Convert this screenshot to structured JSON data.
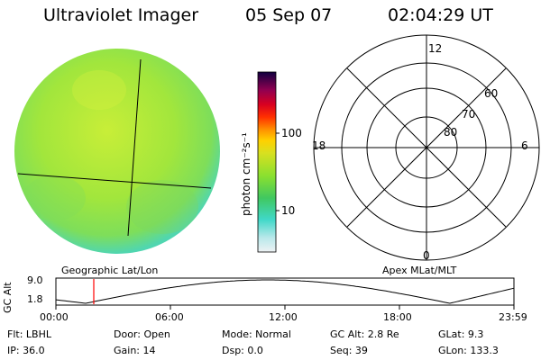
{
  "header": {
    "title": "Ultraviolet Imager",
    "date": "05 Sep 07",
    "time": "02:04:29 UT"
  },
  "colorbar": {
    "unit_label": "photon cm⁻²s⁻¹",
    "ticks": [
      "100",
      "10"
    ]
  },
  "polar_grid": {
    "mlt_labels": [
      "12",
      "18",
      "6",
      "0"
    ],
    "mlat_labels": [
      "60",
      "70",
      "80"
    ]
  },
  "map_labels": {
    "left": "Geographic Lat/Lon",
    "right": "Apex MLat/MLT"
  },
  "altitude_plot": {
    "ylabel": "GC Alt",
    "y_ticks": [
      "9.0",
      "1.8"
    ],
    "x_ticks": [
      "00:00",
      "06:00",
      "12:00",
      "18:00",
      "23:59"
    ],
    "marker_time": "02:04",
    "colors": {
      "curve": "#000000",
      "marker": "#ff0000"
    }
  },
  "info": {
    "flt": "Flt: LBHL",
    "ip": "IP: 36.0",
    "door": "Door: Open",
    "gain": "Gain: 14",
    "mode": "Mode: Normal",
    "dsp": "Dsp:      0.0",
    "gc_alt": "GC Alt: 2.8 Re",
    "seq": "Seq: 39",
    "glat": "GLat:   9.3",
    "glon": "GLon: 133.3"
  },
  "colors": {
    "disk_fill": "#a6e83c",
    "disk_edge": "#4fd6b8",
    "colorbar_scale": [
      "#e8eef0",
      "#b0e8e8",
      "#40d8c8",
      "#30c0a0",
      "#60d040",
      "#a8e030",
      "#e8e020",
      "#ffb000",
      "#ff6000",
      "#e80020",
      "#b00040",
      "#700060",
      "#200060"
    ]
  }
}
